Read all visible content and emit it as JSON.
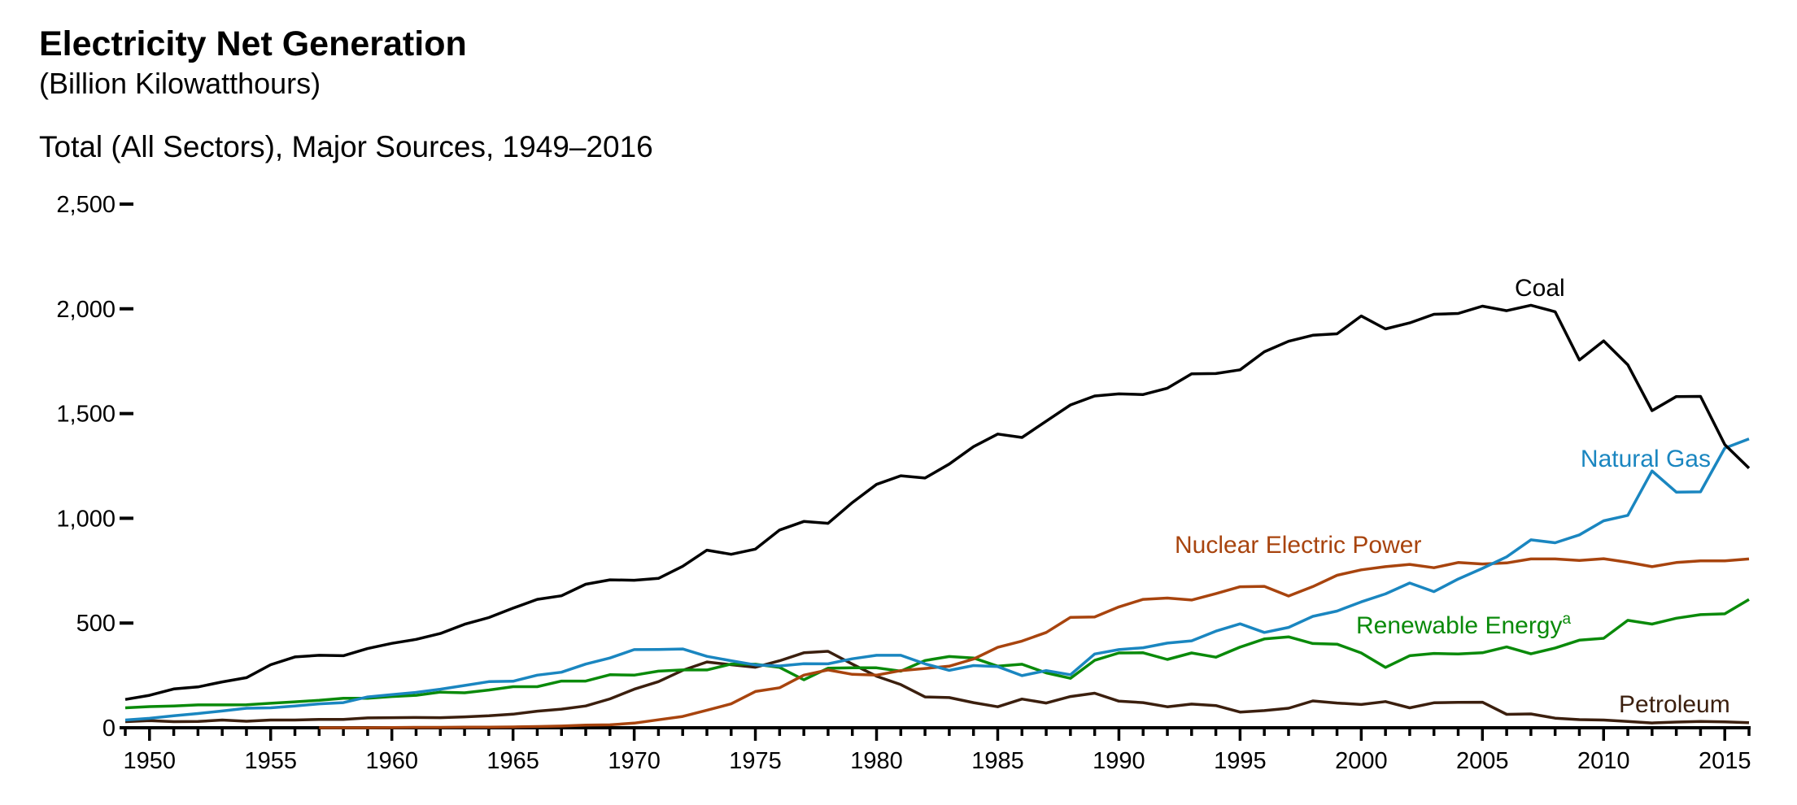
{
  "chart_data": {
    "type": "line",
    "title": "Electricity Net Generation",
    "subtitle": "(Billion Kilowatthours)",
    "panel_title": "Total (All Sectors), Major Sources, 1949–2016",
    "xlabel": "",
    "ylabel": "",
    "xlim": [
      1949,
      2016
    ],
    "ylim": [
      0,
      2500
    ],
    "yticks": [
      0,
      500,
      1000,
      1500,
      2000,
      2500
    ],
    "ytick_labels": [
      "0",
      "500",
      "1,000",
      "1,500",
      "2,000",
      "2,500"
    ],
    "xticks": [
      1950,
      1955,
      1960,
      1965,
      1970,
      1975,
      1980,
      1985,
      1990,
      1995,
      2000,
      2005,
      2010,
      2015
    ],
    "xtick_labels": [
      "1950",
      "1955",
      "1960",
      "1965",
      "1970",
      "1975",
      "1980",
      "1985",
      "1990",
      "1995",
      "2000",
      "2005",
      "2010",
      "2015"
    ],
    "grid": false,
    "legend": "inline labels",
    "series": [
      {
        "name": "Coal",
        "color": "#000000",
        "start": 1949,
        "values": [
          135,
          155,
          185,
          195,
          219,
          239,
          301,
          338,
          346,
          344,
          378,
          403,
          422,
          450,
          494,
          526,
          571,
          613,
          630,
          685,
          706,
          704,
          713,
          771,
          848,
          828,
          853,
          944,
          985,
          976,
          1075,
          1162,
          1203,
          1192,
          1259,
          1342,
          1402,
          1386,
          1464,
          1541,
          1584,
          1594,
          1591,
          1621,
          1690,
          1691,
          1709,
          1795,
          1845,
          1874,
          1881,
          1966,
          1904,
          1933,
          1974,
          1978,
          2013,
          1991,
          2017,
          1986,
          1756,
          1847,
          1733,
          1514,
          1581,
          1582,
          1352,
          1239
        ]
      },
      {
        "name": "Natural Gas",
        "color": "#1a86c0",
        "start": 1949,
        "values": [
          37,
          45,
          57,
          68,
          80,
          93,
          95,
          104,
          114,
          120,
          147,
          158,
          169,
          184,
          202,
          220,
          222,
          251,
          265,
          304,
          333,
          373,
          374,
          376,
          341,
          320,
          300,
          295,
          306,
          305,
          329,
          346,
          346,
          305,
          274,
          297,
          292,
          249,
          273,
          253,
          352,
          373,
          382,
          404,
          415,
          461,
          496,
          455,
          479,
          532,
          557,
          601,
          639,
          691,
          650,
          710,
          761,
          816,
          897,
          883,
          921,
          988,
          1014,
          1226,
          1125,
          1126,
          1335,
          1379
        ]
      },
      {
        "name": "Nuclear Electric Power",
        "color": "#a8440e",
        "start": 1957,
        "values": [
          0,
          0,
          0,
          1,
          2,
          2,
          3,
          3,
          4,
          6,
          8,
          13,
          14,
          22,
          38,
          54,
          84,
          114,
          173,
          191,
          251,
          276,
          255,
          251,
          273,
          283,
          294,
          328,
          384,
          414,
          455,
          527,
          529,
          577,
          613,
          619,
          610,
          640,
          673,
          675,
          629,
          674,
          728,
          754,
          769,
          780,
          764,
          789,
          782,
          787,
          806,
          806,
          799,
          807,
          790,
          769,
          789,
          797,
          797,
          806
        ]
      },
      {
        "name": "Renewable Energy",
        "superscript": "a",
        "color": "#0a8a0a",
        "start": 1949,
        "values": [
          95,
          101,
          104,
          109,
          109,
          110,
          117,
          124,
          131,
          141,
          141,
          149,
          155,
          170,
          167,
          180,
          196,
          196,
          223,
          223,
          253,
          251,
          270,
          276,
          276,
          304,
          303,
          288,
          229,
          284,
          286,
          286,
          270,
          321,
          340,
          333,
          294,
          303,
          262,
          236,
          322,
          357,
          358,
          326,
          357,
          337,
          385,
          424,
          434,
          402,
          399,
          357,
          288,
          344,
          355,
          352,
          358,
          386,
          353,
          381,
          418,
          427,
          513,
          495,
          523,
          540,
          544,
          612
        ]
      },
      {
        "name": "Petroleum",
        "color": "#3b1f0e",
        "start": 1949,
        "values": [
          29,
          34,
          29,
          30,
          37,
          31,
          37,
          37,
          40,
          40,
          47,
          48,
          49,
          48,
          52,
          57,
          65,
          79,
          89,
          104,
          138,
          184,
          220,
          274,
          314,
          301,
          289,
          320,
          358,
          365,
          304,
          246,
          206,
          147,
          144,
          120,
          100,
          137,
          118,
          149,
          165,
          127,
          120,
          100,
          113,
          106,
          75,
          82,
          93,
          128,
          118,
          111,
          125,
          95,
          119,
          121,
          122,
          64,
          66,
          46,
          39,
          37,
          30,
          23,
          27,
          30,
          28,
          24
        ]
      }
    ]
  }
}
